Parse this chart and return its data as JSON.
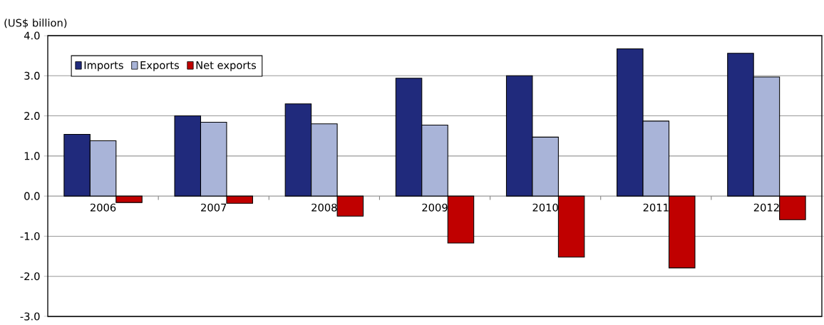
{
  "chart_data": {
    "type": "bar",
    "ylabel": "(US$ billion)",
    "categories": [
      "2006",
      "2007",
      "2008",
      "2009",
      "2010",
      "2011",
      "2012"
    ],
    "series": [
      {
        "name": "Imports",
        "color": "#202a7c",
        "values": [
          1.54,
          2.0,
          2.3,
          2.94,
          3.0,
          3.67,
          3.56
        ]
      },
      {
        "name": "Exports",
        "color": "#a9b4d8",
        "values": [
          1.38,
          1.84,
          1.8,
          1.77,
          1.47,
          1.87,
          2.97
        ]
      },
      {
        "name": "Net exports",
        "color": "#c00000",
        "values": [
          -0.16,
          -0.18,
          -0.5,
          -1.17,
          -1.52,
          -1.79,
          -0.59
        ]
      }
    ],
    "ylim": [
      -3,
      4
    ],
    "yticks": [
      {
        "value": -3,
        "label": "-3.0"
      },
      {
        "value": -2,
        "label": "-2.0"
      },
      {
        "value": -1,
        "label": "-1.0"
      },
      {
        "value": 0,
        "label": "0.0"
      },
      {
        "value": 1,
        "label": "1.0"
      },
      {
        "value": 2,
        "label": "2.0"
      },
      {
        "value": 3,
        "label": "3.0"
      },
      {
        "value": 4,
        "label": "4.0"
      }
    ],
    "grid": "y",
    "legend": "top left"
  }
}
